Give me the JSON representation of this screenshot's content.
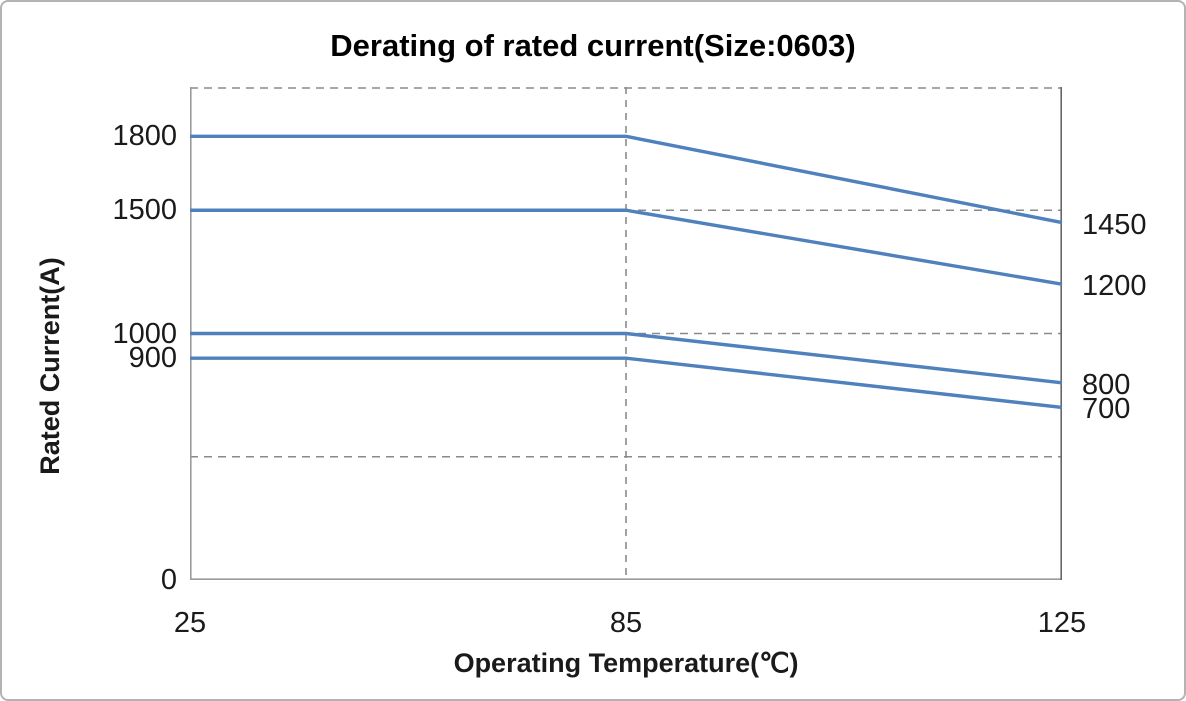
{
  "chart_data": {
    "type": "line",
    "title": "Derating of rated current(Size:0603)",
    "xlabel": "Operating Temperature(℃)",
    "ylabel": "Rated Current(A)",
    "x_tick_labels": [
      "25",
      "85",
      "125"
    ],
    "ylim": [
      0,
      2000
    ],
    "grid": {
      "horizontal_dashed_values": [
        500,
        1000,
        1500,
        2000
      ],
      "vertical_dashed_at_tick": "85"
    },
    "y_axis_ticks": [
      {
        "label": "1800",
        "value": 1800
      },
      {
        "label": "1500",
        "value": 1500
      },
      {
        "label": "1000",
        "value": 1000
      },
      {
        "label": "900",
        "value": 900
      },
      {
        "label": "0",
        "value": 0
      }
    ],
    "series": [
      {
        "name": "1800",
        "values": [
          1800,
          1800,
          1450
        ],
        "end_label": "1450"
      },
      {
        "name": "1500",
        "values": [
          1500,
          1500,
          1200
        ],
        "end_label": "1200"
      },
      {
        "name": "1000",
        "values": [
          1000,
          1000,
          800
        ],
        "end_label": "800"
      },
      {
        "name": "900",
        "values": [
          900,
          900,
          700
        ],
        "end_label": "700"
      }
    ],
    "legend": "none",
    "colors": {
      "series_line": "#4f81bd",
      "gridline": "#8a8a8a",
      "axis_border": "#9b9b9b",
      "right_border": "#666666",
      "text": "#1a1a1a"
    }
  }
}
